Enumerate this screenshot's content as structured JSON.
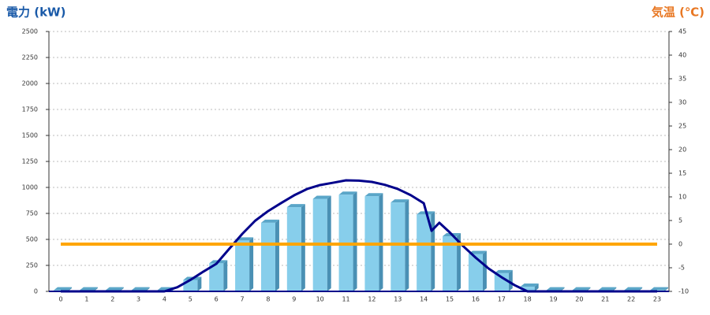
{
  "chart_data": {
    "type": "bar-line",
    "y_label": "電力 (kW)",
    "y2_label": "気温 (℃)",
    "categories": [
      "0",
      "1",
      "2",
      "3",
      "4",
      "5",
      "6",
      "7",
      "8",
      "9",
      "10",
      "11",
      "12",
      "13",
      "14",
      "15",
      "16",
      "17",
      "18",
      "19",
      "20",
      "21",
      "22",
      "23"
    ],
    "ylim": [
      0,
      2500
    ],
    "yticks": [
      0,
      250,
      500,
      750,
      1000,
      1250,
      1500,
      1750,
      2000,
      2250,
      2500
    ],
    "y2lim": [
      -10,
      45
    ],
    "y2ticks": [
      -10,
      -5,
      0,
      5,
      10,
      15,
      20,
      25,
      30,
      35,
      40,
      45
    ],
    "grid": true,
    "series": [
      {
        "kind": "bar",
        "color": "#87ceeb",
        "values": [
          10,
          10,
          10,
          10,
          10,
          110,
          270,
          490,
          660,
          810,
          890,
          930,
          915,
          855,
          740,
          530,
          360,
          175,
          45,
          10,
          10,
          10,
          10,
          10
        ]
      },
      {
        "kind": "line",
        "color": "#00008b",
        "x": [
          0,
          1,
          2,
          3,
          4,
          4.5,
          5,
          5.5,
          6,
          6.5,
          7,
          7.5,
          8,
          8.5,
          9,
          9.5,
          10,
          10.5,
          11,
          11.5,
          12,
          12.5,
          13,
          13.5,
          14,
          14.3,
          14.6,
          15,
          15.5,
          16,
          16.5,
          17,
          17.5,
          18,
          19,
          20,
          21,
          22,
          23
        ],
        "values": [
          0,
          0,
          0,
          0,
          0,
          40,
          110,
          190,
          265,
          410,
          553,
          680,
          773,
          850,
          924,
          985,
          1023,
          1045,
          1068,
          1065,
          1053,
          1025,
          985,
          925,
          848,
          583,
          660,
          568,
          440,
          325,
          220,
          136,
          60,
          0,
          0,
          0,
          0,
          0,
          0
        ]
      },
      {
        "kind": "line",
        "axis": "y2",
        "color": "#ffa500",
        "values": [
          0,
          0,
          0,
          0,
          0,
          0,
          0,
          0,
          0,
          0,
          0,
          0,
          0,
          0,
          0,
          0,
          0,
          0,
          0,
          0,
          0,
          0,
          0,
          0
        ]
      }
    ]
  }
}
